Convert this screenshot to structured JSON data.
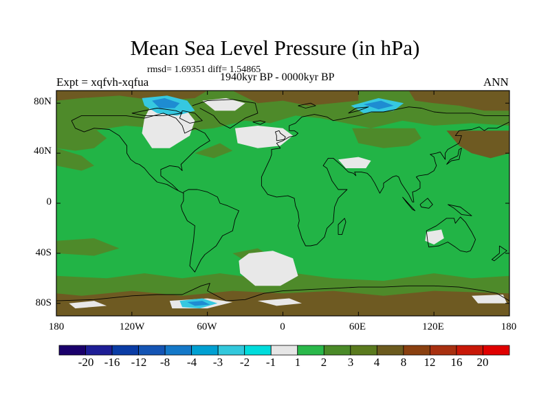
{
  "figure": {
    "title": "Mean Sea Level Pressure (in hPa)",
    "stats": "rmsd= 1.69351 diff= 1.54865",
    "period": "1940kyr BP - 0000kyr BP",
    "experiment": "Expt = xqfvh-xqfua",
    "season": "ANN"
  },
  "axes": {
    "lat_labels": [
      "80N",
      "40N",
      "0",
      "40S",
      "80S"
    ],
    "lon_labels": [
      "180",
      "120W",
      "60W",
      "0",
      "60E",
      "120E",
      "180"
    ]
  },
  "colorbar": {
    "labels": [
      "-20",
      "-16",
      "-12",
      "-8",
      "-4",
      "-3",
      "-2",
      "-1",
      "1",
      "2",
      "3",
      "4",
      "8",
      "12",
      "16",
      "20"
    ],
    "colors": [
      "#1a006b",
      "#1e1e96",
      "#0a3ca5",
      "#1454b4",
      "#1478c8",
      "#00a0d2",
      "#32c8dc",
      "#00dcdc",
      "#e6e6e6",
      "#2ab84a",
      "#4a8a28",
      "#5a7a1e",
      "#6b5a1e",
      "#8a4010",
      "#a83010",
      "#c81808",
      "#e00000"
    ]
  },
  "palette": {
    "base_green": "#22b446",
    "olive": "#4e8a2a",
    "brown": "#6e5a22",
    "grey": "#e8e8e8",
    "cyan": "#36c8e0",
    "blue": "#1e8cd2"
  }
}
